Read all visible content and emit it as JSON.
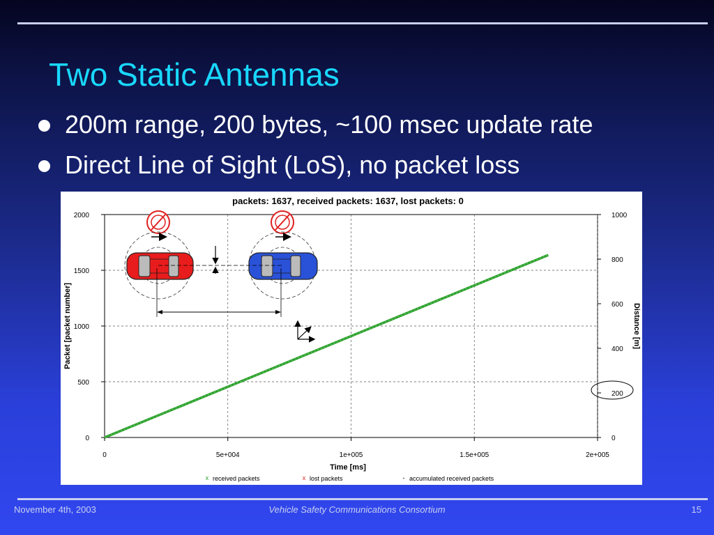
{
  "slide": {
    "title": "Two Static Antennas",
    "bullets": [
      "200m range, 200 bytes, ~100 msec update rate",
      "Direct Line of Sight (LoS), no packet loss"
    ],
    "footer": {
      "date": "November 4th, 2003",
      "center": "Vehicle Safety Communications Consortium",
      "page": "15"
    },
    "colors": {
      "title": "#19d8ff",
      "bullet_text": "#ffffff",
      "received_series": "#2aa02a",
      "lost_series": "#e02020",
      "car_left": "#e81c1c",
      "car_right": "#2a52d8"
    }
  },
  "chart_data": {
    "type": "line",
    "title": "packets: 1637, received packets: 1637, lost packets: 0",
    "xlabel": "Time [ms]",
    "ylabel": "Packet [packet number]",
    "y2label": "Distance [m]",
    "xlim": [
      0,
      200000
    ],
    "ylim": [
      0,
      2000
    ],
    "y2lim": [
      0,
      1000
    ],
    "x_ticks": [
      "0",
      "5e+004",
      "1e+005",
      "1.5e+005",
      "2e+005"
    ],
    "y_ticks": [
      "0",
      "500",
      "1000",
      "1500",
      "2000"
    ],
    "y2_ticks": [
      "0",
      "200",
      "400",
      "600",
      "800",
      "1000"
    ],
    "grid": true,
    "legend_position": "bottom",
    "series": [
      {
        "name": "received packets",
        "marker": "x",
        "x": [
          0,
          180000
        ],
        "y": [
          0,
          1637
        ]
      },
      {
        "name": "lost packets",
        "marker": "x",
        "x": [],
        "y": []
      },
      {
        "name": "accumulated received packets",
        "marker": "-",
        "x": [],
        "y": []
      }
    ],
    "annotations": {
      "circled_y2_tick": "200"
    }
  }
}
